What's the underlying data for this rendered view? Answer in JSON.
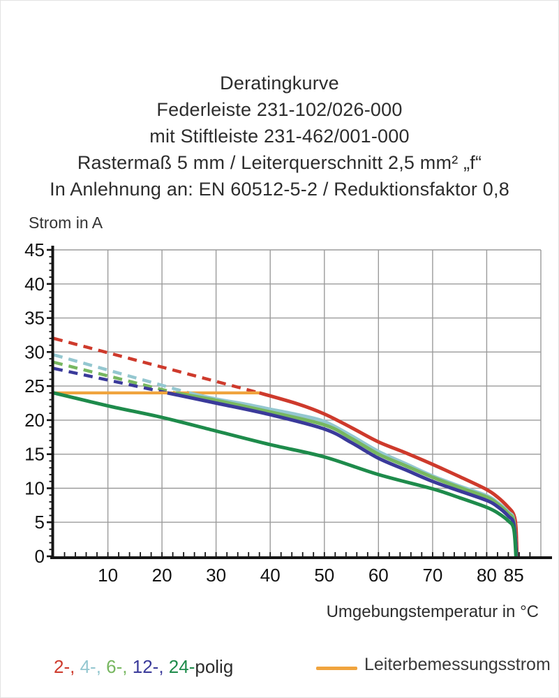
{
  "title": {
    "lines": [
      "Deratingkurve",
      "Federleiste 231-102/026-000",
      "mit Stiftleiste 231-462/001-000",
      "Rastermaß 5 mm / Leiterquerschnitt 2,5 mm² „f“",
      "In Anlehnung an: EN 60512-5-2 / Reduktionsfaktor 0,8"
    ]
  },
  "chart_data": {
    "type": "line",
    "title": "Deratingkurve",
    "xlabel": "Umgebungstemperatur in °C",
    "ylabel": "Strom in A",
    "x_range": [
      0,
      90
    ],
    "y_range": [
      0,
      45
    ],
    "x_major_ticks": [
      10,
      20,
      30,
      40,
      50,
      60,
      70,
      80,
      85
    ],
    "y_major_ticks": [
      0,
      5,
      10,
      15,
      20,
      25,
      30,
      35,
      40,
      45
    ],
    "x_minor_step": 2,
    "y_minor_step": 1,
    "grid": true,
    "legend_position": "bottom",
    "series": [
      {
        "name": "2-polig",
        "color": "#ce3a2c",
        "dashed": [
          [
            0,
            32
          ],
          [
            38,
            24
          ]
        ],
        "solid": [
          [
            38,
            24
          ],
          [
            45,
            22.4
          ],
          [
            50,
            20.9
          ],
          [
            55,
            18.9
          ],
          [
            60,
            16.8
          ],
          [
            65,
            15.2
          ],
          [
            70,
            13.5
          ],
          [
            75,
            11.7
          ],
          [
            80,
            9.8
          ],
          [
            82,
            8.7
          ],
          [
            84,
            7.2
          ],
          [
            85,
            6.1
          ],
          [
            85.4,
            4.2
          ],
          [
            85.6,
            0
          ]
        ]
      },
      {
        "name": "4-polig",
        "color": "#94c7d0",
        "dashed": [
          [
            0,
            29.6
          ],
          [
            25,
            24
          ]
        ],
        "solid": [
          [
            25,
            24
          ],
          [
            30,
            23.1
          ],
          [
            35,
            22.4
          ],
          [
            40,
            21.6
          ],
          [
            45,
            20.8
          ],
          [
            50,
            19.8
          ],
          [
            55,
            17.7
          ],
          [
            60,
            15.4
          ],
          [
            65,
            13.6
          ],
          [
            70,
            11.8
          ],
          [
            75,
            10.3
          ],
          [
            80,
            8.9
          ],
          [
            82,
            7.9
          ],
          [
            84,
            6.5
          ],
          [
            85,
            5.3
          ],
          [
            85.5,
            0
          ]
        ]
      },
      {
        "name": "6-polig",
        "color": "#77b760",
        "dashed": [
          [
            0,
            28.5
          ],
          [
            22.5,
            24
          ]
        ],
        "solid": [
          [
            22.5,
            24
          ],
          [
            30,
            22.9
          ],
          [
            40,
            21.2
          ],
          [
            50,
            19.3
          ],
          [
            55,
            17.3
          ],
          [
            60,
            15.0
          ],
          [
            65,
            13.3
          ],
          [
            70,
            11.6
          ],
          [
            75,
            10.1
          ],
          [
            80,
            8.7
          ],
          [
            82,
            7.7
          ],
          [
            84,
            6.3
          ],
          [
            85,
            5.1
          ],
          [
            85.5,
            0
          ]
        ]
      },
      {
        "name": "12-polig",
        "color": "#3a3a9a",
        "dashed": [
          [
            0,
            27.6
          ],
          [
            21,
            24
          ]
        ],
        "solid": [
          [
            21,
            24
          ],
          [
            30,
            22.5
          ],
          [
            40,
            20.8
          ],
          [
            50,
            18.7
          ],
          [
            55,
            16.7
          ],
          [
            60,
            14.4
          ],
          [
            65,
            12.7
          ],
          [
            70,
            11.0
          ],
          [
            75,
            9.6
          ],
          [
            80,
            8.2
          ],
          [
            82,
            7.3
          ],
          [
            84,
            5.9
          ],
          [
            85,
            4.7
          ],
          [
            85.5,
            0
          ]
        ]
      },
      {
        "name": "24-polig",
        "color": "#1e8b4b",
        "dashed": null,
        "solid": [
          [
            0,
            24
          ],
          [
            10,
            22.1
          ],
          [
            20,
            20.4
          ],
          [
            30,
            18.4
          ],
          [
            40,
            16.4
          ],
          [
            50,
            14.6
          ],
          [
            60,
            12.0
          ],
          [
            70,
            9.9
          ],
          [
            75,
            8.6
          ],
          [
            80,
            7.2
          ],
          [
            82,
            6.4
          ],
          [
            84,
            5.2
          ],
          [
            85,
            4.0
          ],
          [
            85.4,
            0
          ]
        ]
      }
    ],
    "reference_line": {
      "label": "Leiterbemessungsstrom",
      "value": 24,
      "x_range": [
        0,
        38
      ],
      "color": "#f0a43e"
    }
  },
  "legend": {
    "pole_items": [
      {
        "label": "2-,",
        "color": "#ce3a2c"
      },
      {
        "label": "4-,",
        "color": "#94c7d0"
      },
      {
        "label": "6-,",
        "color": "#77b760"
      },
      {
        "label": "12-,",
        "color": "#3a3a9a"
      },
      {
        "label": "24-",
        "color": "#1e8b4b"
      }
    ],
    "pole_suffix": "polig",
    "line_label": "Leiterbemessungsstrom",
    "line_color": "#f0a43e"
  },
  "colors": {
    "grid": "#9b9b9b",
    "axis": "#151515",
    "tick_label": "#131313",
    "text": "#2d2d2d"
  }
}
